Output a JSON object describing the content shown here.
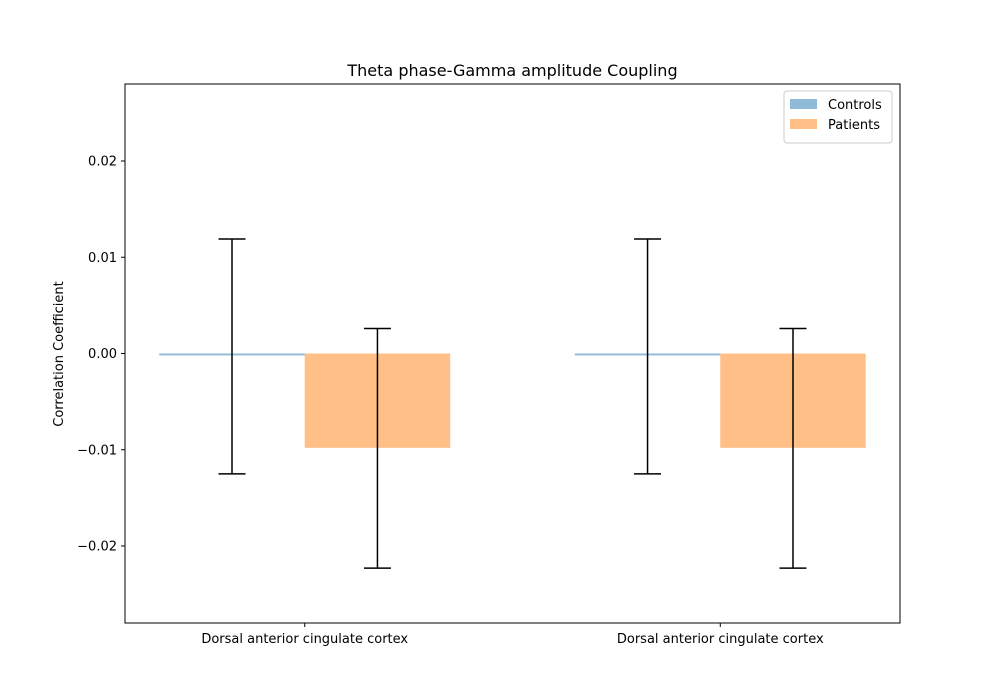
{
  "chart_data": {
    "type": "bar",
    "title": "Theta phase-Gamma amplitude Coupling",
    "xlabel": "",
    "ylabel": "Correlation Coefficient",
    "categories": [
      "Dorsal anterior cingulate cortex",
      "Dorsal anterior cingulate cortex"
    ],
    "series": [
      {
        "name": "Controls",
        "color": "#1f77b4",
        "opacity": 0.5,
        "values": [
          -0.0002,
          -0.0002
        ],
        "error_low": [
          -0.0125,
          -0.0125
        ],
        "error_high": [
          0.0119,
          0.0119
        ]
      },
      {
        "name": "Patients",
        "color": "#ff7f0e",
        "opacity": 0.5,
        "values": [
          -0.0098,
          -0.0098
        ],
        "error_low": [
          -0.0223,
          -0.0223
        ],
        "error_high": [
          0.0026,
          0.0026
        ]
      }
    ],
    "ylim": [
      -0.028,
      0.028
    ],
    "yticks": [
      -0.02,
      -0.01,
      0.0,
      0.01,
      0.02
    ],
    "ytick_labels": [
      "−0.02",
      "−0.01",
      "0.00",
      "0.01",
      "0.02"
    ],
    "grid": false,
    "legend_position": "top-right"
  }
}
